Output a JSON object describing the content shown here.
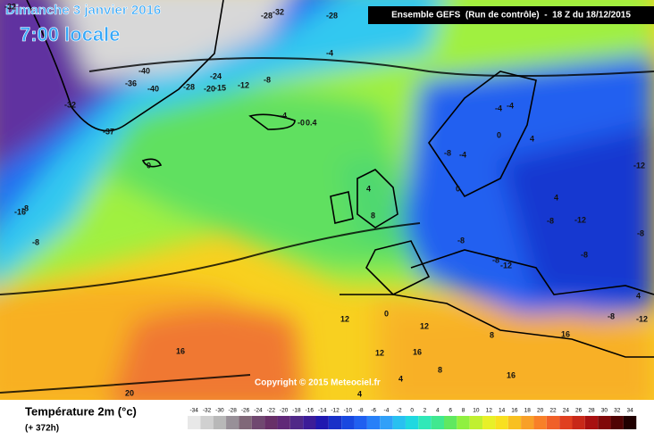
{
  "header": {
    "title": "Dimanche 3 janvier 2016",
    "time": "7:00 locale",
    "model": "Ensemble GEFS  (Run de contrôle)  -  18 Z du 18/12/2015"
  },
  "copyright": "Copyright © 2015 Meteociel.fr",
  "legend": {
    "title": "Température 2m (°c)",
    "lead": "(+ 372h)",
    "ticks": [
      -34,
      -32,
      -30,
      -28,
      -26,
      -24,
      -22,
      -20,
      -18,
      -16,
      -14,
      -12,
      -10,
      -8,
      -6,
      -4,
      -2,
      0,
      2,
      4,
      6,
      8,
      10,
      12,
      14,
      16,
      18,
      20,
      22,
      24,
      26,
      28,
      30,
      32,
      34
    ],
    "colors": [
      "#e8e8e8",
      "#d0d0d0",
      "#b8b8b8",
      "#989098",
      "#806878",
      "#704870",
      "#683068",
      "#602878",
      "#502888",
      "#3c1c98",
      "#2018b0",
      "#1830c8",
      "#1848e0",
      "#2060f0",
      "#2880f8",
      "#30a0f8",
      "#28c0f0",
      "#20d8e0",
      "#30e8b8",
      "#40e890",
      "#60e860",
      "#90f040",
      "#c0f030",
      "#e8f028",
      "#f8e020",
      "#f8c020",
      "#f8a028",
      "#f88028",
      "#f06028",
      "#e04020",
      "#c82818",
      "#a81010",
      "#800808",
      "#500404",
      "#200000"
    ]
  },
  "map_labels": [
    "-32",
    "-28",
    "-32",
    "-28",
    "-4",
    "-40",
    "-36",
    "-40",
    "-24",
    "-28",
    "-20",
    "-15",
    "-12",
    "-8",
    "-32",
    "-37",
    "-4",
    "-0",
    "0.4",
    "0",
    "-16",
    "-8",
    "-8",
    "-8",
    "-4",
    "-4",
    "0",
    "-4",
    "4",
    "0",
    "4",
    "8",
    "-8",
    "-8",
    "-8",
    "-12",
    "-8",
    "-8",
    "-12",
    "-12",
    "-8",
    "-12",
    "4",
    "4",
    "0",
    "12",
    "12",
    "16",
    "16",
    "20",
    "16",
    "12",
    "8",
    "4",
    "8",
    "16",
    "4"
  ]
}
